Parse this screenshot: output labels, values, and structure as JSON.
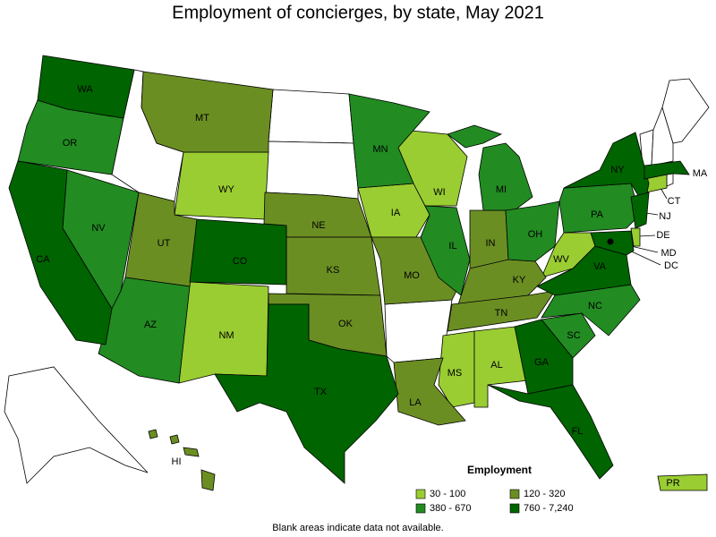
{
  "title": "Employment of concierges, by state, May 2021",
  "legend": {
    "title": "Employment",
    "items": [
      {
        "label": "30 - 100",
        "color": "#9acd32",
        "states": [
          "WY",
          "NM",
          "IA",
          "WI",
          "WV",
          "MS",
          "AL",
          "CT",
          "DE",
          "PR"
        ]
      },
      {
        "label": "120 - 320",
        "color": "#6b8e23",
        "states": [
          "MT",
          "UT",
          "NE",
          "KS",
          "OK",
          "MO",
          "IN",
          "KY",
          "TN",
          "LA",
          "HI"
        ]
      },
      {
        "label": "380 - 670",
        "color": "#228b22",
        "states": [
          "OR",
          "NV",
          "AZ",
          "MN",
          "MI",
          "IL",
          "OH",
          "PA",
          "NC",
          "SC"
        ]
      },
      {
        "label": "760 - 7,240",
        "color": "#006400",
        "states": [
          "WA",
          "CA",
          "CO",
          "TX",
          "NY",
          "MA",
          "NJ",
          "VA",
          "GA",
          "FL",
          "MD",
          "DC"
        ]
      }
    ]
  },
  "note": "Blank areas indicate data not available."
}
